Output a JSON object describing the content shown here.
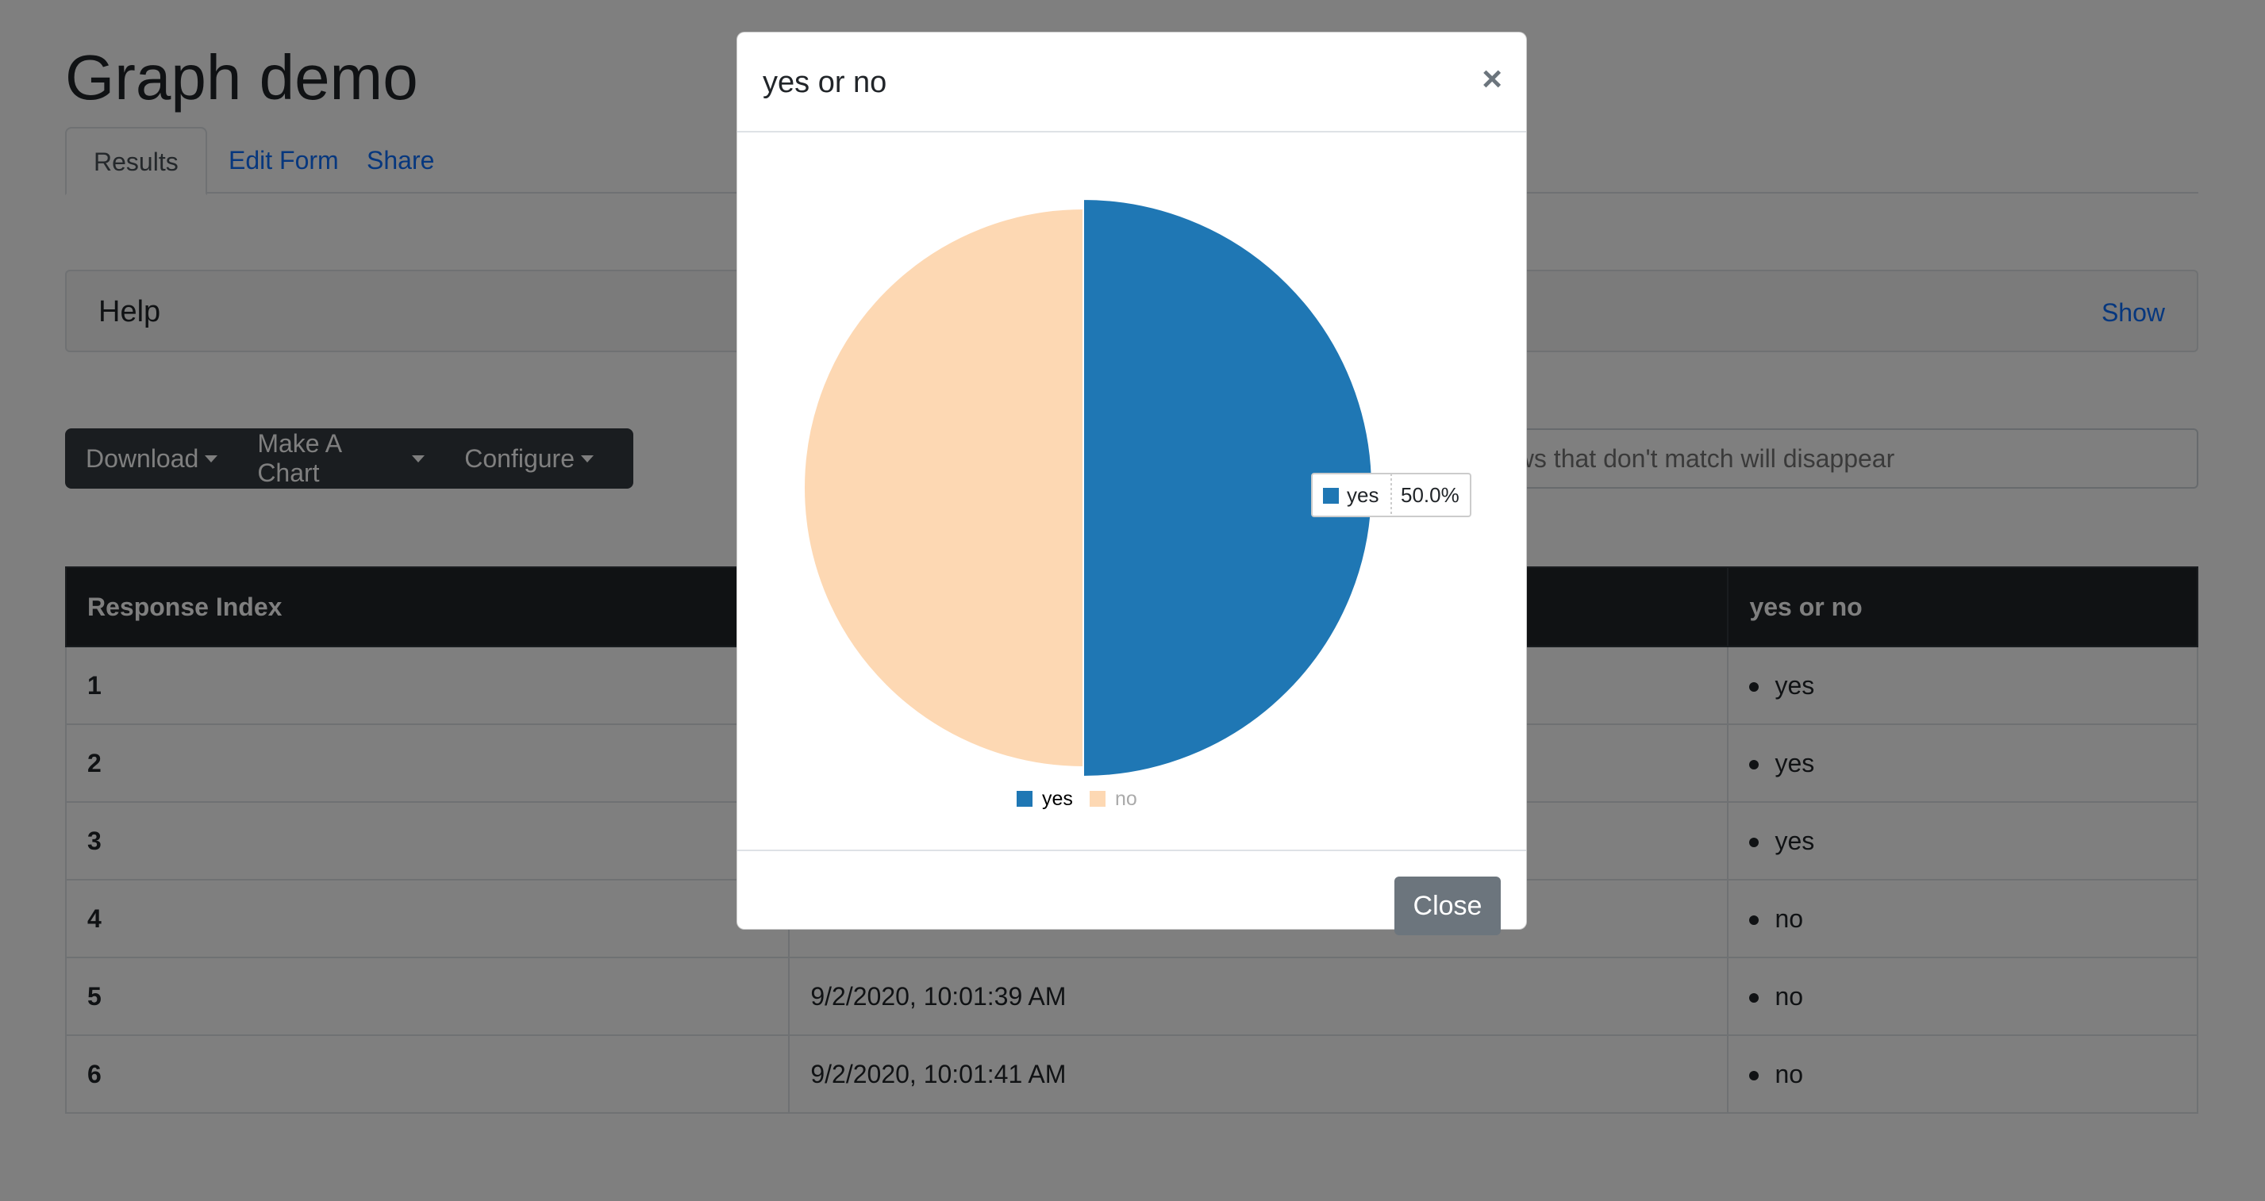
{
  "page": {
    "title": "Graph demo"
  },
  "tabs": [
    {
      "label": "Results",
      "active": true
    },
    {
      "label": "Edit Form",
      "active": false
    },
    {
      "label": "Share",
      "active": false
    }
  ],
  "help": {
    "title": "Help",
    "toggle_label": "Show"
  },
  "toolbar": {
    "download_label": "Download",
    "make_chart_label": "Make A Chart",
    "configure_label": "Configure"
  },
  "filter": {
    "placeholder": "ows that don't match will disappear"
  },
  "table": {
    "headers": [
      "Response Index",
      "",
      "yes or no"
    ],
    "rows": [
      {
        "index": "1",
        "timestamp": "",
        "answer": "yes"
      },
      {
        "index": "2",
        "timestamp": "",
        "answer": "yes"
      },
      {
        "index": "3",
        "timestamp": "",
        "answer": "yes"
      },
      {
        "index": "4",
        "timestamp": "",
        "answer": "no"
      },
      {
        "index": "5",
        "timestamp": "9/2/2020, 10:01:39 AM",
        "answer": "no"
      },
      {
        "index": "6",
        "timestamp": "9/2/2020, 10:01:41 AM",
        "answer": "no"
      }
    ]
  },
  "modal": {
    "title": "yes or no",
    "close_icon": "×",
    "close_button_label": "Close",
    "tooltip": {
      "label": "yes",
      "value": "50.0%"
    }
  },
  "colors": {
    "yes": "#1f77b4",
    "no": "#fdd8b3",
    "legend_hidden_text": "#aaaaaa"
  },
  "chart_data": {
    "type": "pie",
    "title": "",
    "slices": [
      {
        "label": "yes",
        "value": 50.0,
        "color": "#1f77b4",
        "emphasized": true
      },
      {
        "label": "no",
        "value": 50.0,
        "color": "#fdd8b3",
        "emphasized": false
      }
    ],
    "legend": {
      "entries": [
        "yes",
        "no"
      ],
      "position": "bottom"
    }
  }
}
